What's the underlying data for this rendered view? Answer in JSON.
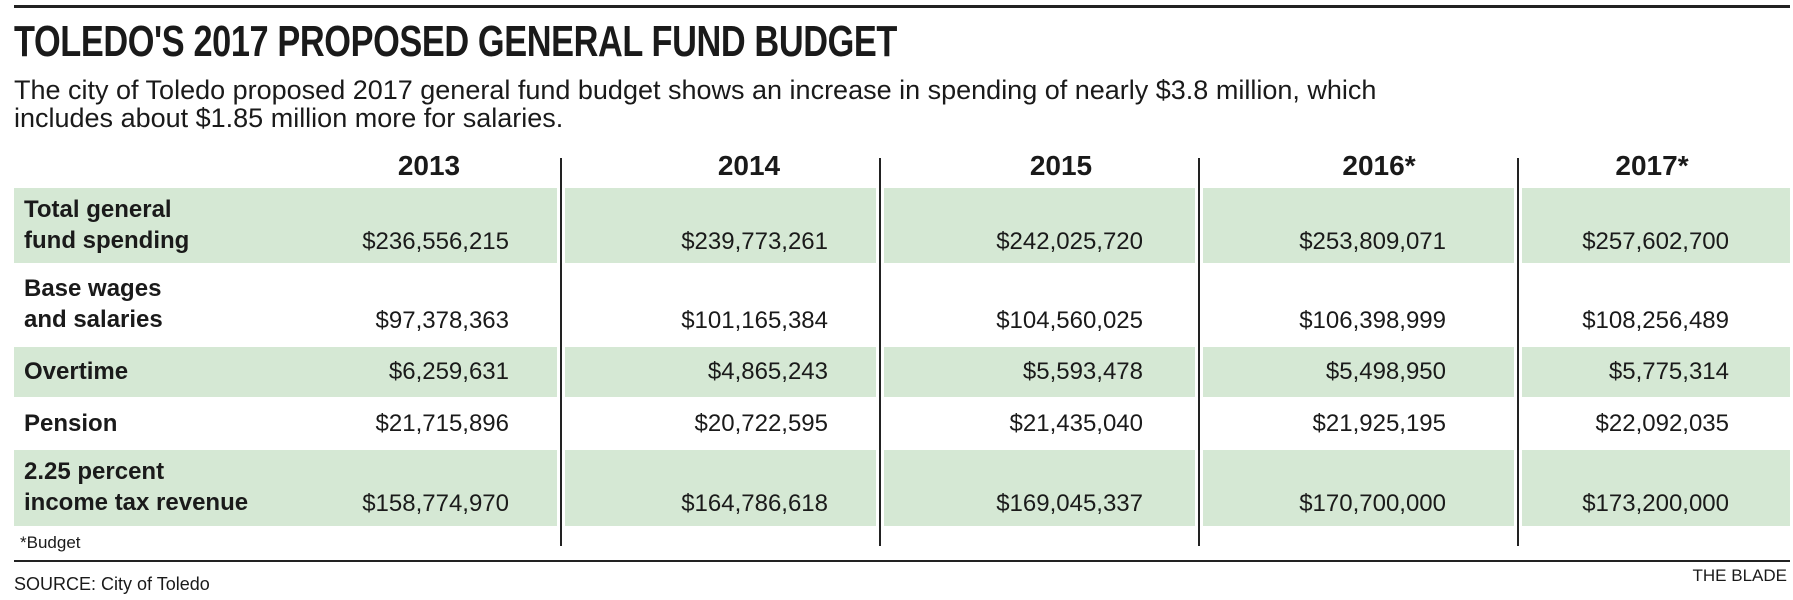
{
  "title": "TOLEDO'S 2017 PROPOSED GENERAL FUND BUDGET",
  "subtitle": [
    "The city of Toledo proposed 2017 general fund budget shows an increase in spending of nearly $3.8 million, which",
    "includes about $1.85 million more for salaries."
  ],
  "years": [
    "2013",
    "2014",
    "2015",
    "2016*",
    "2017*"
  ],
  "rows": [
    {
      "label": [
        "Total general",
        "fund spending"
      ],
      "values": [
        "$236,556,215",
        "$239,773,261",
        "$242,025,720",
        "$253,809,071",
        "$257,602,700"
      ]
    },
    {
      "label": [
        "Base wages",
        "and salaries"
      ],
      "values": [
        "$97,378,363",
        "$101,165,384",
        "$104,560,025",
        "$106,398,999",
        "$108,256,489"
      ]
    },
    {
      "label": [
        "Overtime"
      ],
      "values": [
        "$6,259,631",
        "$4,865,243",
        "$5,593,478",
        "$5,498,950",
        "$5,775,314"
      ]
    },
    {
      "label": [
        "Pension"
      ],
      "values": [
        "$21,715,896",
        "$20,722,595",
        "$21,435,040",
        "$21,925,195",
        "$22,092,035"
      ]
    },
    {
      "label": [
        "2.25 percent",
        "income tax revenue"
      ],
      "values": [
        "$158,774,970",
        "$164,786,618",
        "$169,045,337",
        "$170,700,000",
        "$173,200,000"
      ]
    }
  ],
  "footnote": "*Budget",
  "source": "SOURCE: City of Toledo",
  "credit": "THE BLADE",
  "colors": {
    "band": "#d5e8d4",
    "rule": "#222222"
  }
}
